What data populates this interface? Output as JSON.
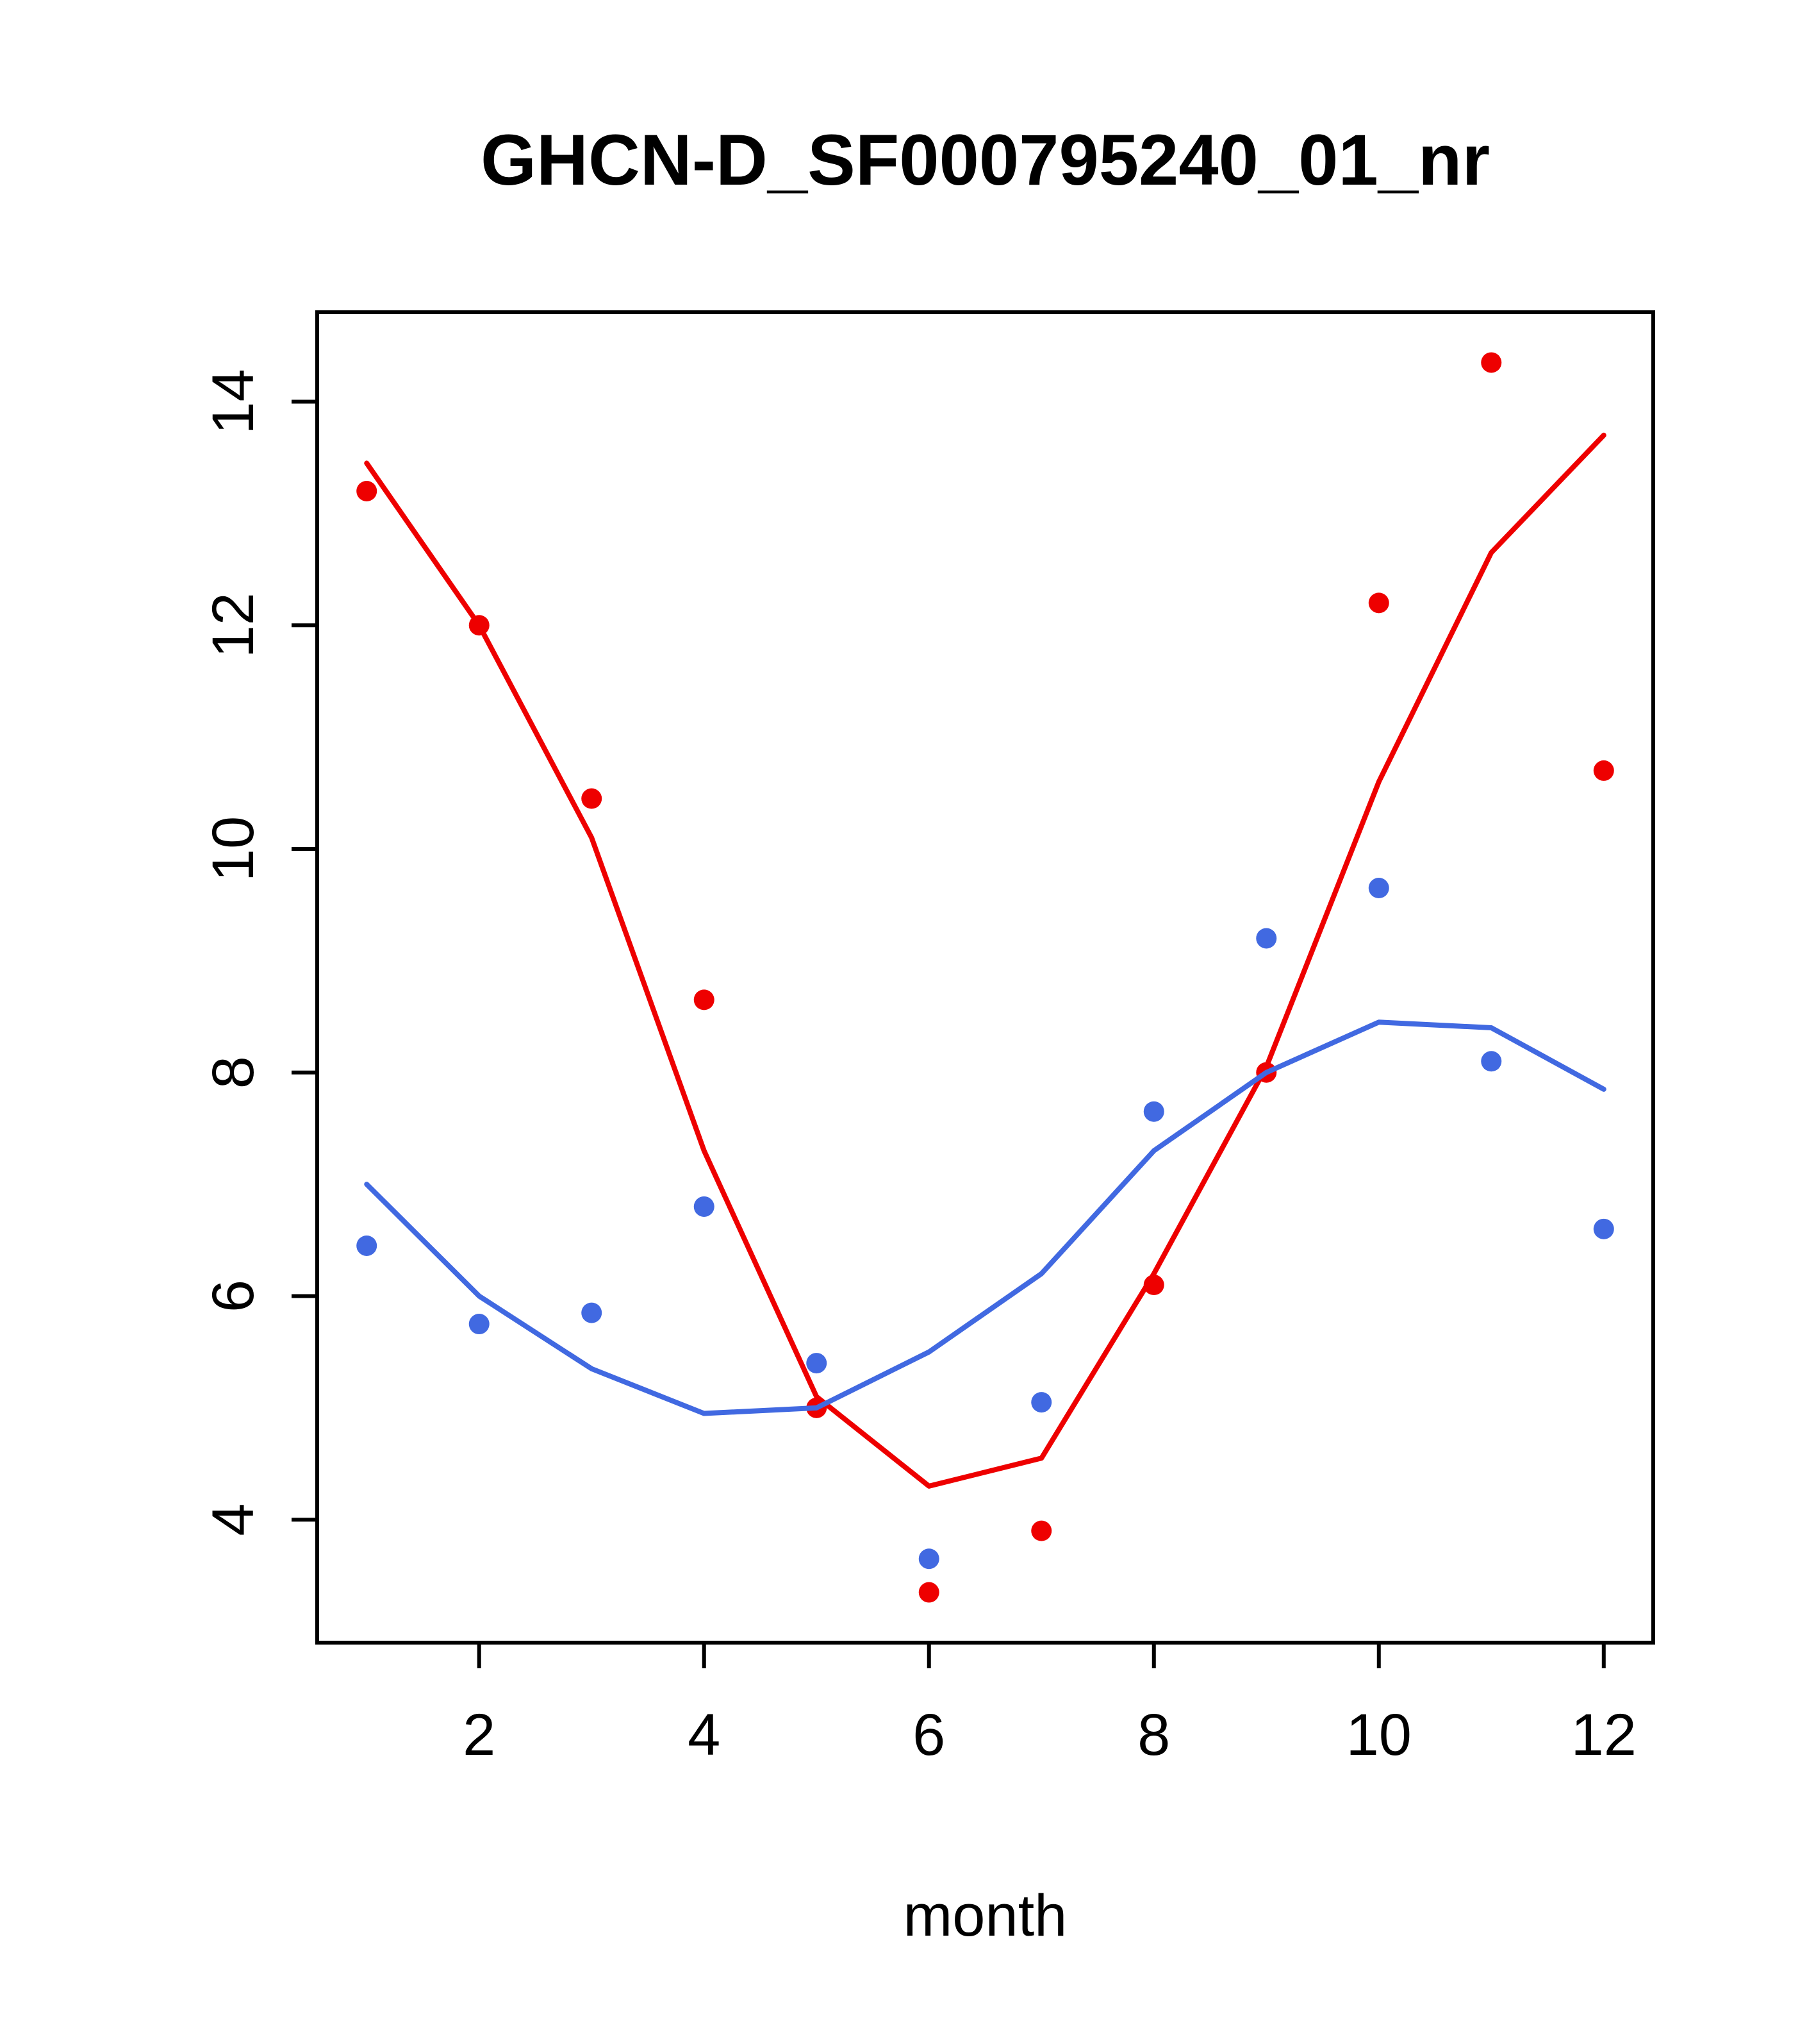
{
  "figure": {
    "background": "#ffffff",
    "axis_color": "#000000"
  },
  "chart_data": {
    "type": "scatter",
    "title": "GHCN-D_SF000795240_01_nr",
    "xlabel": "month",
    "ylabel": "",
    "grid": false,
    "legend": null,
    "x": [
      1,
      2,
      3,
      4,
      5,
      6,
      7,
      8,
      9,
      10,
      11,
      12
    ],
    "xlim": [
      0.56,
      12.44
    ],
    "ylim": [
      2.9,
      14.8
    ],
    "xticks": [
      2,
      4,
      6,
      8,
      10,
      12
    ],
    "yticks": [
      4,
      6,
      8,
      10,
      12,
      14
    ],
    "series": [
      {
        "name": "red-points",
        "kind": "points",
        "color": "#ee0000",
        "values": [
          13.2,
          12.0,
          10.45,
          8.65,
          5.0,
          3.35,
          3.9,
          6.1,
          8.0,
          12.2,
          14.35,
          10.7
        ]
      },
      {
        "name": "red-smooth-line",
        "kind": "line",
        "color": "#ee0000",
        "values": [
          13.45,
          12.0,
          10.1,
          7.3,
          5.1,
          4.3,
          4.55,
          6.2,
          8.05,
          10.6,
          12.65,
          13.7
        ]
      },
      {
        "name": "blue-points",
        "kind": "points",
        "color": "#4169e1",
        "values": [
          6.45,
          5.75,
          5.85,
          6.8,
          5.4,
          3.65,
          5.05,
          7.65,
          9.2,
          9.65,
          8.1,
          6.6
        ]
      },
      {
        "name": "blue-smooth-line",
        "kind": "line",
        "color": "#4169e1",
        "values": [
          7.0,
          6.0,
          5.35,
          4.95,
          5.0,
          5.5,
          6.2,
          7.3,
          8.0,
          8.45,
          8.4,
          7.85
        ]
      }
    ]
  }
}
